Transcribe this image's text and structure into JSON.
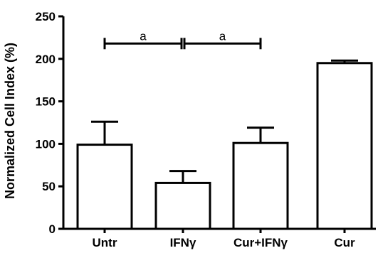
{
  "chart_data": {
    "type": "bar",
    "title": "",
    "xlabel": "",
    "ylabel": "Normalized Cell Index (%)",
    "ylim": [
      0,
      250
    ],
    "yticks": [
      0,
      50,
      100,
      150,
      200,
      250
    ],
    "grid": false,
    "legend": "none",
    "categories": [
      "Untr",
      "IFNγ",
      "Cur+IFNγ",
      "Cur"
    ],
    "values": [
      99,
      54,
      101,
      195
    ],
    "error_upper": [
      27,
      14,
      18,
      3
    ],
    "annotations": [
      {
        "from": "Untr",
        "to": "IFNγ",
        "label": "a",
        "y": 218
      },
      {
        "from": "IFNγ",
        "to": "Cur+IFNγ",
        "label": "a",
        "y": 218
      }
    ],
    "colors": {
      "bar_fill": "#ffffff",
      "bar_stroke": "#000000"
    }
  }
}
